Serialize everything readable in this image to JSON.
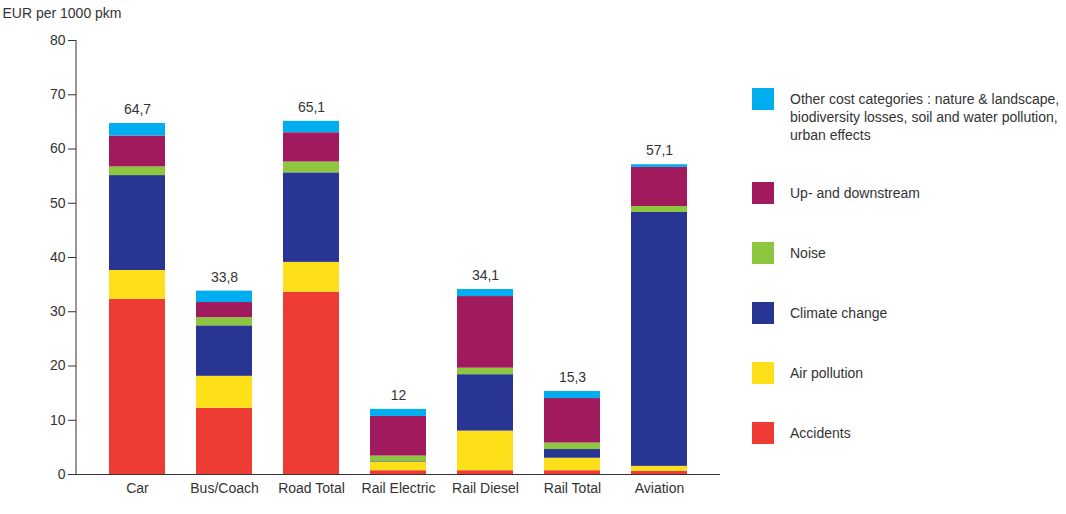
{
  "chart_data": {
    "type": "bar",
    "stacked": true,
    "y_label": "EUR per 1000 pkm",
    "categories": [
      "Car",
      "Bus/Coach",
      "Road Total",
      "Rail Electric",
      "Rail Diesel",
      "Rail Total",
      "Aviation"
    ],
    "series": [
      {
        "name": "Accidents",
        "color": "#ee3b34",
        "values": [
          32.3,
          12.2,
          33.6,
          0.7,
          0.7,
          0.7,
          0.6
        ]
      },
      {
        "name": "Air pollution",
        "color": "#fde01a",
        "values": [
          5.3,
          5.9,
          5.5,
          1.6,
          7.3,
          2.3,
          0.9
        ]
      },
      {
        "name": "Climate change",
        "color": "#283592",
        "values": [
          17.5,
          9.3,
          16.5,
          0.1,
          10.4,
          1.6,
          46.8
        ]
      },
      {
        "name": "Noise",
        "color": "#8dc63f",
        "values": [
          1.6,
          1.5,
          2.0,
          1.0,
          1.2,
          1.2,
          1.1
        ]
      },
      {
        "name": "Up- and downstream",
        "color": "#a21a5e",
        "values": [
          5.7,
          2.8,
          5.4,
          7.3,
          13.2,
          8.2,
          7.2
        ]
      },
      {
        "name": "Other cost categories : nature & landscape, biodiversity losses, soil and water pollution, urban effects",
        "color": "#00aeef",
        "values": [
          2.3,
          2.1,
          2.1,
          1.3,
          1.3,
          1.3,
          0.5
        ]
      }
    ],
    "totals": [
      64.7,
      33.8,
      65.1,
      12,
      34.1,
      15.3,
      57.1
    ],
    "total_labels": [
      "64,7",
      "33,8",
      "65,1",
      "12",
      "34,1",
      "15,3",
      "57,1"
    ],
    "ylim": [
      0,
      80
    ],
    "yticks": [
      0,
      10,
      20,
      30,
      40,
      50,
      60,
      70,
      80
    ],
    "grid": false,
    "data_labels": true,
    "legend": "right"
  }
}
